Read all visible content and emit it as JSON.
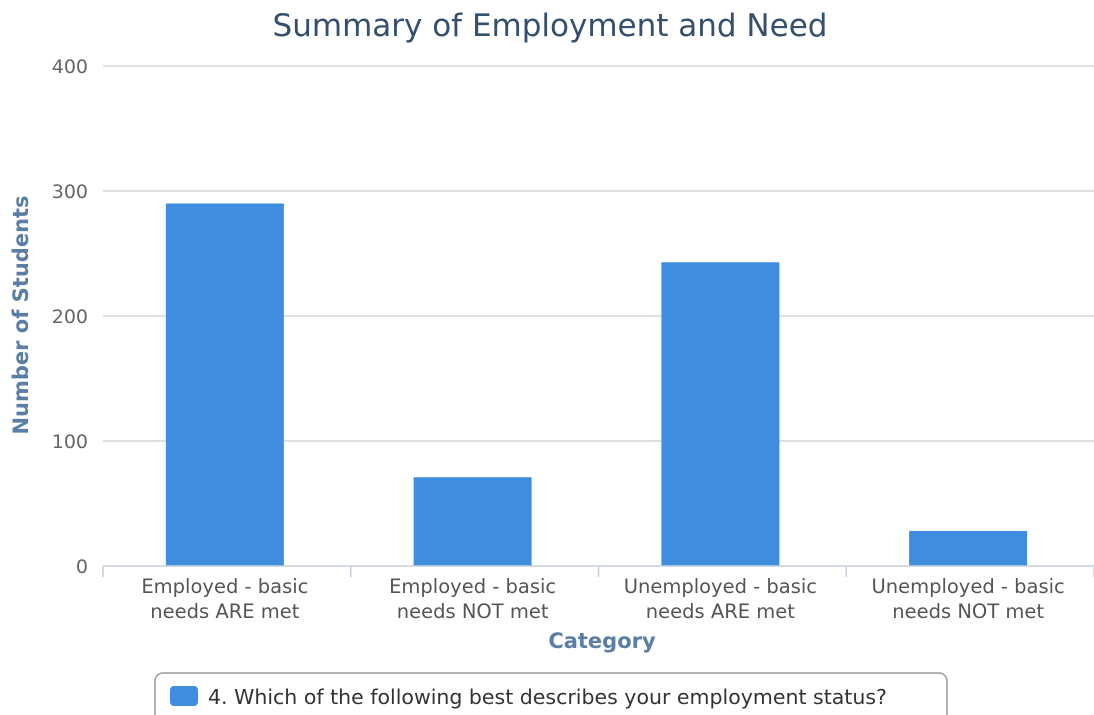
{
  "chart_data": {
    "type": "bar",
    "title": "Summary of Employment and Need",
    "xlabel": "Category",
    "ylabel": "Number of Students",
    "categories": [
      [
        "Employed - basic",
        "needs ARE met"
      ],
      [
        "Employed - basic",
        "needs NOT met"
      ],
      [
        "Unemployed - basic",
        "needs ARE met"
      ],
      [
        "Unemployed - basic",
        "needs NOT met"
      ]
    ],
    "series": [
      {
        "name": "4. Which of the following best describes your employment status?",
        "color": "#3f8ddf",
        "values": [
          290,
          71,
          243,
          28
        ]
      }
    ],
    "ylim": [
      0,
      400
    ],
    "yticks": [
      0,
      100,
      200,
      300,
      400
    ],
    "grid": true,
    "legend_position": "bottom-center"
  }
}
